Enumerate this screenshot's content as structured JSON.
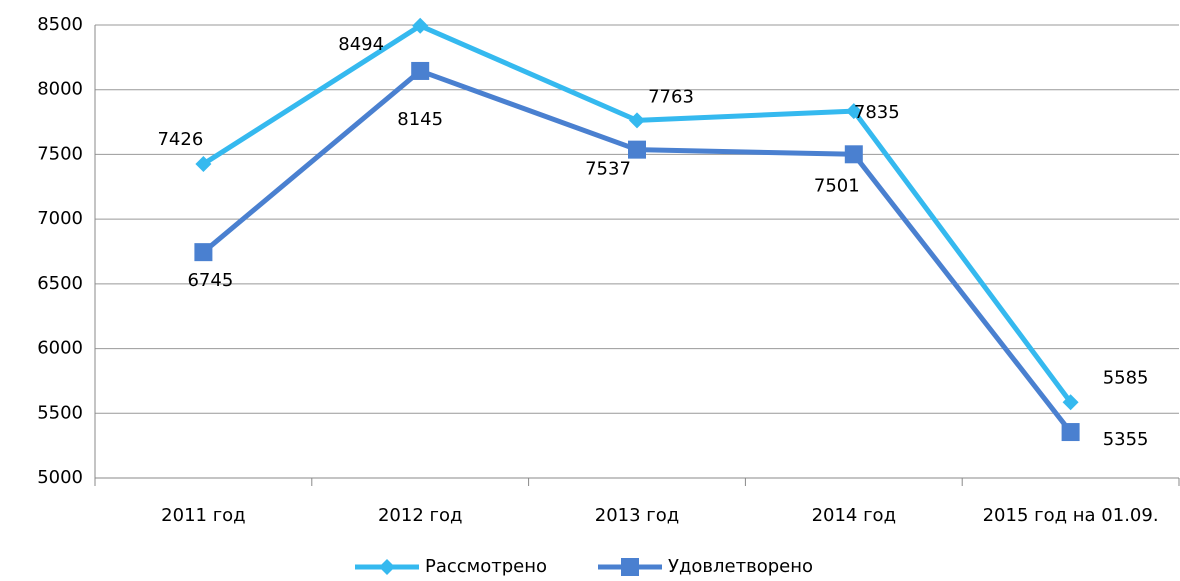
{
  "chart_data": {
    "type": "line",
    "categories": [
      "2011 год",
      "2012 год",
      "2013 год",
      "2014 год",
      "2015 год на 01.09."
    ],
    "series": [
      {
        "name": "Рассмотрено",
        "color": "#35b9ef",
        "marker": "diamond",
        "values": [
          7426,
          8494,
          7763,
          7835,
          5585
        ]
      },
      {
        "name": "Удовлетворено",
        "color": "#4a80d0",
        "marker": "square",
        "values": [
          6745,
          8145,
          7537,
          7501,
          5355
        ]
      }
    ],
    "ylim": [
      5000,
      8500
    ],
    "yticks": [
      5000,
      5500,
      6000,
      6500,
      7000,
      7500,
      8000,
      8500
    ],
    "grid": true,
    "legend": "bottom"
  }
}
